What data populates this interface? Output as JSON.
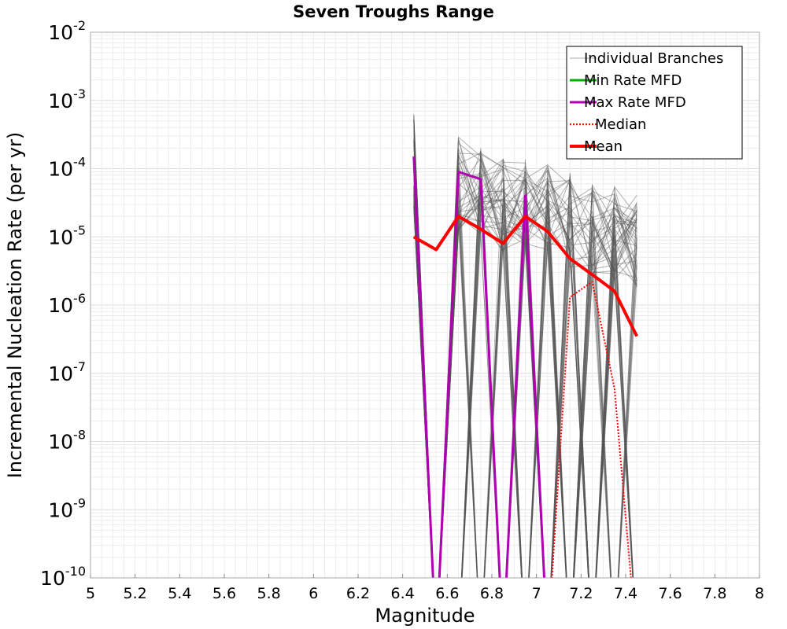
{
  "chart_data": {
    "type": "line",
    "title": "Seven Troughs Range",
    "xlabel": "Magnitude",
    "ylabel": "Incremental Nucleation Rate (per yr)",
    "xlim": [
      5,
      8
    ],
    "ylim": [
      1e-10,
      0.01
    ],
    "yscale": "log",
    "grid": true,
    "legend_position": "top-right",
    "x_ticks": [
      "5",
      "5.2",
      "5.4",
      "5.6",
      "5.8",
      "6",
      "6.2",
      "6.4",
      "6.6",
      "6.8",
      "7",
      "7.2",
      "7.4",
      "7.6",
      "7.8",
      "8"
    ],
    "y_ticks": [
      {
        "base": "10",
        "exp": "-10"
      },
      {
        "base": "10",
        "exp": "-9"
      },
      {
        "base": "10",
        "exp": "-8"
      },
      {
        "base": "10",
        "exp": "-7"
      },
      {
        "base": "10",
        "exp": "-6"
      },
      {
        "base": "10",
        "exp": "-5"
      },
      {
        "base": "10",
        "exp": "-4"
      },
      {
        "base": "10",
        "exp": "-3"
      },
      {
        "base": "10",
        "exp": "-2"
      }
    ],
    "x": [
      6.45,
      6.55,
      6.65,
      6.75,
      6.85,
      6.95,
      7.05,
      7.15,
      7.25,
      7.35,
      7.45
    ],
    "series": [
      {
        "name": "Individual Branches",
        "color": "#555555",
        "style": "thin",
        "representative": true,
        "values": [
          0.00013,
          0,
          6e-05,
          4e-05,
          3e-05,
          3e-05,
          2.5e-05,
          1.8e-05,
          1.2e-05,
          1.1e-05,
          9e-06
        ]
      },
      {
        "name": "Min Rate MFD",
        "color": "#00b000",
        "style": "solid",
        "values": [
          0,
          0,
          0,
          0,
          0,
          0,
          0,
          0,
          0,
          0,
          0
        ]
      },
      {
        "name": "Max Rate MFD",
        "color": "#b000b0",
        "style": "solid",
        "values": [
          0.00015,
          0,
          9e-05,
          7e-05,
          0,
          4e-05,
          0,
          0,
          0,
          0,
          0
        ]
      },
      {
        "name": "Median",
        "color": "#ff0000",
        "style": "dotted",
        "values": [
          0,
          0,
          0,
          0,
          0,
          0,
          0,
          1.3e-06,
          2.2e-06,
          6e-08,
          0
        ]
      },
      {
        "name": "Mean",
        "color": "#ff0000",
        "style": "thick",
        "values": [
          1e-05,
          6.5e-06,
          2e-05,
          1.3e-05,
          8e-06,
          2e-05,
          1.2e-05,
          4.8e-06,
          2.8e-06,
          1.6e-06,
          3.5e-07
        ]
      }
    ],
    "legend": [
      {
        "label": "Individual Branches",
        "color": "#aaaaaa",
        "style": "thin"
      },
      {
        "label": "Min Rate MFD",
        "color": "#00b000",
        "style": "solid"
      },
      {
        "label": "Max Rate MFD",
        "color": "#b000b0",
        "style": "solid"
      },
      {
        "label": "Median",
        "color": "#ff0000",
        "style": "dotted"
      },
      {
        "label": "Mean",
        "color": "#ff0000",
        "style": "thick"
      }
    ]
  }
}
